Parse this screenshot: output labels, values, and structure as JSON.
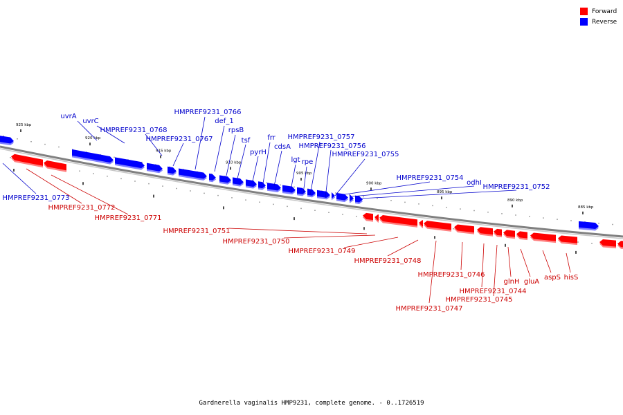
{
  "legend": {
    "items": [
      {
        "label": "Forward",
        "color": "#ff0000"
      },
      {
        "label": "Reverse",
        "color": "#0000ff"
      }
    ]
  },
  "caption": "Gardnerella vaginalis HMP9231, complete genome. - 0..1726519",
  "colors": {
    "forward": "#ff0000",
    "reverse": "#0000ff",
    "forward_label": "#cc0000",
    "reverse_label": "#0000cc",
    "backbone": "#808080"
  },
  "ticks": [
    "925 kbp",
    "920 kbp",
    "915 kbp",
    "910 kbp",
    "905 kbp",
    "900 kbp",
    "895 kbp",
    "890 kbp",
    "885 kbp"
  ],
  "reverse_genes": [
    "HMPREF9231_0773",
    "uvrA",
    "uvrC",
    "HMPREF9231_0768",
    "HMPREF9231_0767",
    "HMPREF9231_0766",
    "def_1",
    "rpsB",
    "tsf",
    "pyrH",
    "frr",
    "cdsA",
    "lgt",
    "rpe",
    "HMPREF9231_0757",
    "HMPREF9231_0756",
    "HMPREF9231_0755",
    "HMPREF9231_0754",
    "odhI",
    "HMPREF9231_0752"
  ],
  "forward_genes": [
    "HMPREF9231_0772",
    "HMPREF9231_0771",
    "HMPREF9231_0751",
    "HMPREF9231_0750",
    "HMPREF9231_0749",
    "HMPREF9231_0748",
    "HMPREF9231_0746",
    "HMPREF9231_0747",
    "HMPREF9231_0744",
    "HMPREF9231_0745",
    "glnH",
    "gluA",
    "aspS",
    "hisS"
  ]
}
